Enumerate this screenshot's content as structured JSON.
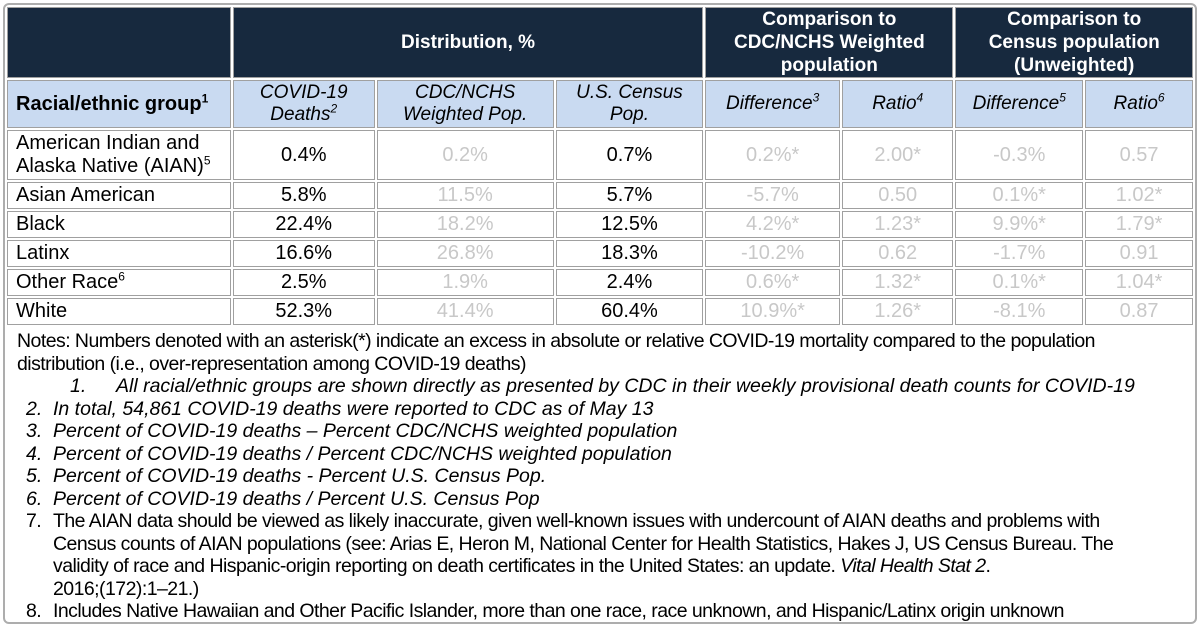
{
  "colors": {
    "header_navy": "#17293e",
    "header_blue": "#c9daf1",
    "muted_value_gray": "#c8c8c8",
    "grid_gray": "#a0a0a0",
    "text_black": "#000000"
  },
  "table": {
    "top_headers": [
      {
        "label": "",
        "lines": [
          ""
        ]
      },
      {
        "label": "Distribution, %",
        "lines": [
          "Distribution, %"
        ]
      },
      {
        "label": "Comparison to CDC/NCHS Weighted population",
        "lines": [
          "Comparison to",
          "CDC/NCHS Weighted",
          "population"
        ]
      },
      {
        "label": "Comparison to Census population (Unweighted)",
        "lines": [
          "Comparison to",
          "Census population",
          "(Unweighted)"
        ]
      }
    ],
    "column_headers": [
      {
        "label": "Racial/ethnic group",
        "sup": "1"
      },
      {
        "label": "COVID-19 Deaths",
        "sup": "2"
      },
      {
        "label": "CDC/NCHS Weighted Pop.",
        "sup": ""
      },
      {
        "label": "U.S. Census Pop.",
        "sup": ""
      },
      {
        "label": "Difference",
        "sup": "3"
      },
      {
        "label": "Ratio",
        "sup": "4"
      },
      {
        "label": "Difference",
        "sup": "5"
      },
      {
        "label": "Ratio",
        "sup": "6"
      }
    ],
    "rows": [
      {
        "group": "American Indian and Alaska Native (AIAN)",
        "group_sup": "5",
        "covid_deaths": "0.4%",
        "cdc_nchs_weighted": "0.2%",
        "us_census": "0.7%",
        "diff_weighted": "0.2%*",
        "ratio_weighted": "2.00*",
        "diff_census": "-0.3%",
        "ratio_census": "0.57"
      },
      {
        "group": "Asian American",
        "group_sup": "",
        "covid_deaths": "5.8%",
        "cdc_nchs_weighted": "11.5%",
        "us_census": "5.7%",
        "diff_weighted": "-5.7%",
        "ratio_weighted": "0.50",
        "diff_census": "0.1%*",
        "ratio_census": "1.02*"
      },
      {
        "group": "Black",
        "group_sup": "",
        "covid_deaths": "22.4%",
        "cdc_nchs_weighted": "18.2%",
        "us_census": "12.5%",
        "diff_weighted": "4.2%*",
        "ratio_weighted": "1.23*",
        "diff_census": "9.9%*",
        "ratio_census": "1.79*"
      },
      {
        "group": "Latinx",
        "group_sup": "",
        "covid_deaths": "16.6%",
        "cdc_nchs_weighted": "26.8%",
        "us_census": "18.3%",
        "diff_weighted": "-10.2%",
        "ratio_weighted": "0.62",
        "diff_census": "-1.7%",
        "ratio_census": "0.91"
      },
      {
        "group": "Other Race",
        "group_sup": "6",
        "covid_deaths": "2.5%",
        "cdc_nchs_weighted": "1.9%",
        "us_census": "2.4%",
        "diff_weighted": "0.6%*",
        "ratio_weighted": "1.32*",
        "diff_census": "0.1%*",
        "ratio_census": "1.04*"
      },
      {
        "group": "White",
        "group_sup": "",
        "covid_deaths": "52.3%",
        "cdc_nchs_weighted": "41.4%",
        "us_census": "60.4%",
        "diff_weighted": "10.9%*",
        "ratio_weighted": "1.26*",
        "diff_census": "-8.1%",
        "ratio_census": "0.87"
      }
    ]
  },
  "notes": {
    "intro": {
      "style": "cond",
      "parts": [
        {
          "t": "Notes: Numbers denoted with an asterisk(*) indicate an excess in absolute or relative COVID-19 mortality compared to the population"
        },
        {
          "br": true
        },
        {
          "t": "distribution (i.e., over-representation among COVID-19 deaths)"
        }
      ]
    },
    "items": [
      {
        "num": "1.",
        "style": "ital extra-indent",
        "parts": [
          {
            "t": "All racial/ethnic groups are shown directly as presented by CDC in their weekly provisional death counts for COVID-19"
          }
        ]
      },
      {
        "num": "2.",
        "style": "ital",
        "parts": [
          {
            "t": "In total, 54,861 COVID-19 deaths were reported to CDC as of May 13"
          }
        ]
      },
      {
        "num": "3.",
        "style": "ital",
        "parts": [
          {
            "t": "Percent of COVID-19 deaths – Percent CDC/NCHS weighted population"
          }
        ]
      },
      {
        "num": "4.",
        "style": "ital",
        "parts": [
          {
            "t": "Percent of COVID-19 deaths / Percent CDC/NCHS weighted population"
          }
        ]
      },
      {
        "num": "5.",
        "style": "ital",
        "parts": [
          {
            "t": "Percent of COVID-19 deaths - Percent U.S. Census Pop."
          }
        ]
      },
      {
        "num": "6.",
        "style": "ital",
        "parts": [
          {
            "t": "Percent of COVID-19 deaths / Percent U.S. Census Pop"
          }
        ]
      },
      {
        "num": "7.",
        "style": "cond",
        "parts": [
          {
            "t": "The AIAN data should be viewed as likely inaccurate, given well-known issues with undercount of AIAN deaths and problems with"
          },
          {
            "br": true
          },
          {
            "t": "Census counts of AIAN populations (see: Arias E, Heron M, National Center for Health Statistics, Hakes J, US Census Bureau. The"
          },
          {
            "br": true
          },
          {
            "t": "validity of race and Hispanic-origin reporting on death certificates in the United States: an update. "
          },
          {
            "t": "Vital Health Stat 2",
            "i": true
          },
          {
            "t": "."
          },
          {
            "br": true
          },
          {
            "t": "2016;(172):1–21.)"
          }
        ]
      },
      {
        "num": "8.",
        "style": "cond",
        "parts": [
          {
            "t": "Includes Native Hawaiian and Other Pacific Islander, more than one race, race unknown, and Hispanic/Latinx origin unknown"
          }
        ]
      }
    ]
  },
  "chart_data": {
    "type": "table",
    "title": "COVID-19 deaths distribution by racial/ethnic group vs population distribution",
    "columns": [
      "Racial/ethnic group",
      "COVID-19 Deaths %",
      "CDC/NCHS Weighted Pop. %",
      "U.S. Census Pop. %",
      "Difference vs CDC/NCHS Weighted",
      "Ratio vs CDC/NCHS Weighted",
      "Difference vs Census (Unweighted)",
      "Ratio vs Census (Unweighted)"
    ],
    "rows": [
      [
        "American Indian and Alaska Native (AIAN)",
        "0.4%",
        "0.2%",
        "0.7%",
        "0.2%*",
        "2.00*",
        "-0.3%",
        "0.57"
      ],
      [
        "Asian American",
        "5.8%",
        "11.5%",
        "5.7%",
        "-5.7%",
        "0.50",
        "0.1%*",
        "1.02*"
      ],
      [
        "Black",
        "22.4%",
        "18.2%",
        "12.5%",
        "4.2%*",
        "1.23*",
        "9.9%*",
        "1.79*"
      ],
      [
        "Latinx",
        "16.6%",
        "26.8%",
        "18.3%",
        "-10.2%",
        "0.62",
        "-1.7%",
        "0.91"
      ],
      [
        "Other Race",
        "2.5%",
        "1.9%",
        "2.4%",
        "0.6%*",
        "1.32*",
        "0.1%*",
        "1.04*"
      ],
      [
        "White",
        "52.3%",
        "41.4%",
        "60.4%",
        "10.9%*",
        "1.26*",
        "-8.1%",
        "0.87"
      ]
    ]
  }
}
